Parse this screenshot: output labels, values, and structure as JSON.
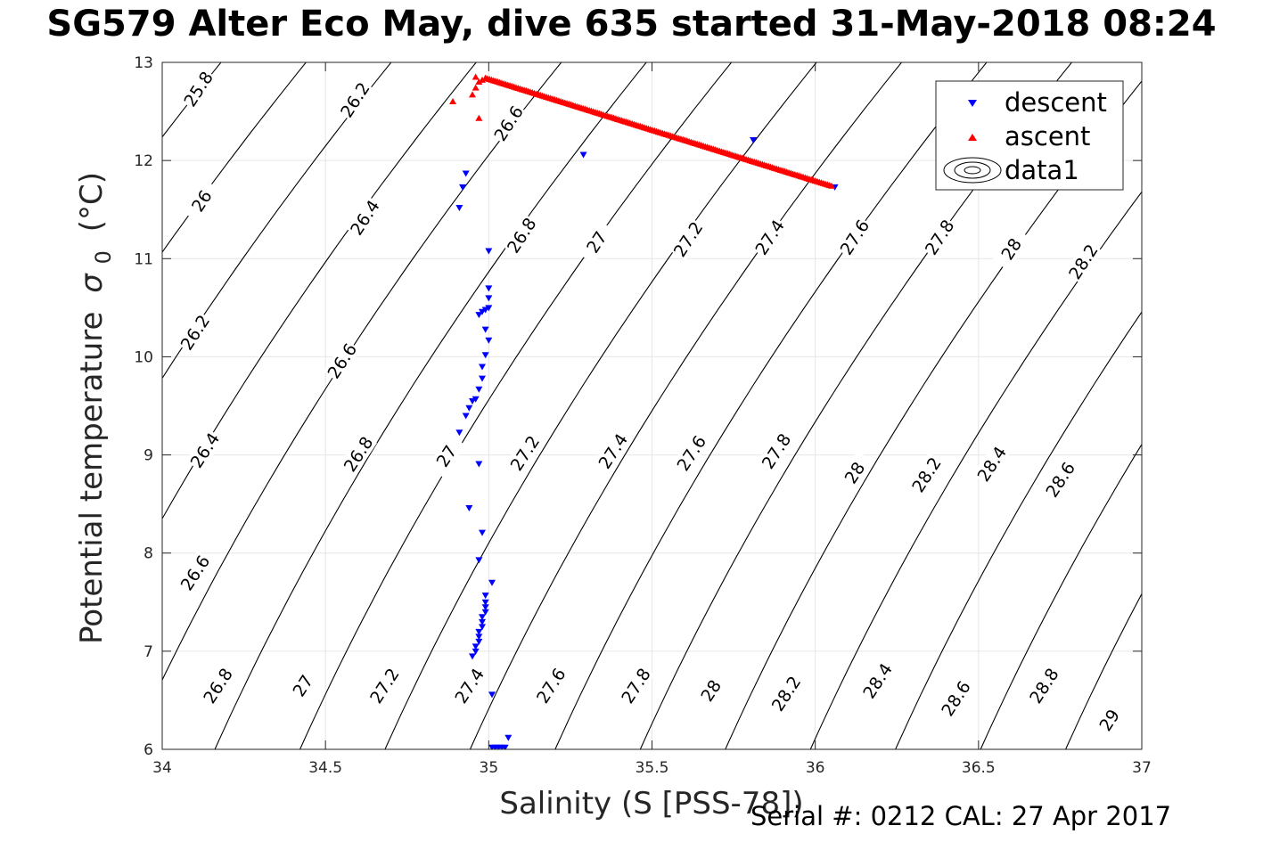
{
  "title": "SG579 Alter Eco May, dive 635 started 31-May-2018 08:24",
  "footer": "Serial #: 0212  CAL: 27 Apr 2017",
  "colors": {
    "descent": "#0000ff",
    "ascent": "#ff0000",
    "contour": "#000000",
    "grid": "#e6e6e6"
  },
  "chart_data": {
    "type": "scatter",
    "title": "SG579 Alter Eco May, dive 635 started 31-May-2018 08:24",
    "xlabel": "Salinity (S [PSS-78])",
    "ylabel": "Potential temperature",
    "ylabel_symbol": "σ",
    "ylabel_sub": "0",
    "ylabel_unit": "(°C)",
    "xlim": [
      34,
      37
    ],
    "ylim": [
      6,
      13
    ],
    "xticks": [
      "34",
      "34.5",
      "35",
      "35.5",
      "36",
      "36.5",
      "37"
    ],
    "yticks": [
      "6",
      "7",
      "8",
      "9",
      "10",
      "11",
      "12",
      "13"
    ],
    "grid": true,
    "legend_position": "top-right",
    "series": [
      {
        "name": "descent",
        "marker": "triangle-down",
        "color": "#0000ff",
        "points": [
          [
            36.06,
            11.73
          ],
          [
            35.81,
            12.21
          ],
          [
            35.29,
            12.06
          ],
          [
            34.93,
            11.87
          ],
          [
            34.92,
            11.73
          ],
          [
            34.91,
            11.52
          ],
          [
            35.0,
            11.08
          ],
          [
            35.0,
            10.7
          ],
          [
            35.0,
            10.6
          ],
          [
            35.0,
            10.5
          ],
          [
            34.99,
            10.48
          ],
          [
            34.98,
            10.46
          ],
          [
            34.97,
            10.43
          ],
          [
            34.99,
            10.28
          ],
          [
            35.0,
            10.17
          ],
          [
            34.99,
            10.02
          ],
          [
            34.98,
            9.9
          ],
          [
            34.98,
            9.78
          ],
          [
            34.97,
            9.67
          ],
          [
            34.96,
            9.57
          ],
          [
            34.95,
            9.55
          ],
          [
            34.94,
            9.48
          ],
          [
            34.93,
            9.4
          ],
          [
            34.91,
            9.23
          ],
          [
            34.97,
            8.91
          ],
          [
            34.94,
            8.46
          ],
          [
            34.98,
            8.21
          ],
          [
            34.97,
            7.93
          ],
          [
            35.01,
            7.7
          ],
          [
            34.99,
            7.57
          ],
          [
            34.99,
            7.5
          ],
          [
            34.99,
            7.45
          ],
          [
            34.99,
            7.4
          ],
          [
            34.98,
            7.35
          ],
          [
            34.98,
            7.3
          ],
          [
            34.98,
            7.25
          ],
          [
            34.97,
            7.2
          ],
          [
            34.97,
            7.15
          ],
          [
            34.97,
            7.1
          ],
          [
            34.96,
            7.05
          ],
          [
            34.96,
            7.0
          ],
          [
            34.95,
            6.95
          ],
          [
            35.01,
            6.56
          ],
          [
            35.06,
            6.12
          ],
          [
            35.05,
            6.02
          ],
          [
            35.04,
            6.02
          ],
          [
            35.03,
            6.02
          ],
          [
            35.02,
            6.02
          ],
          [
            35.01,
            6.02
          ]
        ]
      },
      {
        "name": "ascent",
        "marker": "triangle-up",
        "color": "#ff0000",
        "line_from": [
          34.99,
          12.84
        ],
        "line_to": [
          36.05,
          11.74
        ],
        "points": [
          [
            34.89,
            12.6
          ],
          [
            34.97,
            12.43
          ],
          [
            34.95,
            12.67
          ],
          [
            34.96,
            12.74
          ],
          [
            34.97,
            12.8
          ],
          [
            34.96,
            12.85
          ],
          [
            34.98,
            12.82
          ]
        ]
      },
      {
        "name": "data1",
        "type": "contour",
        "isopycnals": [
          "25.8",
          "26",
          "26.2",
          "26.4",
          "26.6",
          "26.8",
          "27",
          "27.2",
          "27.4",
          "27.6",
          "27.8",
          "28",
          "28.2",
          "28.4",
          "28.6",
          "28.8",
          "29"
        ],
        "labels": [
          [
            "25.8",
            34.11,
            12.73
          ],
          [
            "26.2",
            34.59,
            12.62
          ],
          [
            "26.6",
            35.06,
            12.38
          ],
          [
            "26",
            34.12,
            11.59
          ],
          [
            "26.4",
            34.62,
            11.42
          ],
          [
            "26.8",
            35.1,
            11.24
          ],
          [
            "27",
            35.33,
            11.17
          ],
          [
            "27.2",
            35.61,
            11.2
          ],
          [
            "27.4",
            35.86,
            11.22
          ],
          [
            "27.6",
            36.12,
            11.22
          ],
          [
            "27.8",
            36.38,
            11.22
          ],
          [
            "28",
            36.6,
            11.1
          ],
          [
            "28.2",
            36.82,
            10.97
          ],
          [
            "26.2",
            34.1,
            10.25
          ],
          [
            "26.6",
            34.55,
            9.96
          ],
          [
            "26.4",
            34.13,
            9.05
          ],
          [
            "26.8",
            34.6,
            9.01
          ],
          [
            "27",
            34.87,
            8.99
          ],
          [
            "27.2",
            35.11,
            9.02
          ],
          [
            "27.4",
            35.38,
            9.04
          ],
          [
            "27.6",
            35.62,
            9.02
          ],
          [
            "27.8",
            35.88,
            9.04
          ],
          [
            "28",
            36.12,
            8.82
          ],
          [
            "28.2",
            36.34,
            8.8
          ],
          [
            "28.4",
            36.54,
            8.91
          ],
          [
            "28.6",
            36.75,
            8.75
          ],
          [
            "26.6",
            34.1,
            7.8
          ],
          [
            "26.8",
            34.17,
            6.65
          ],
          [
            "27",
            34.43,
            6.65
          ],
          [
            "27.2",
            34.68,
            6.65
          ],
          [
            "27.4",
            34.94,
            6.65
          ],
          [
            "27.6",
            35.19,
            6.65
          ],
          [
            "27.8",
            35.45,
            6.65
          ],
          [
            "28",
            35.68,
            6.6
          ],
          [
            "28.2",
            35.91,
            6.57
          ],
          [
            "28.4",
            36.19,
            6.7
          ],
          [
            "28.6",
            36.43,
            6.52
          ],
          [
            "28.8",
            36.7,
            6.65
          ],
          [
            "29",
            36.9,
            6.3
          ]
        ]
      }
    ]
  }
}
